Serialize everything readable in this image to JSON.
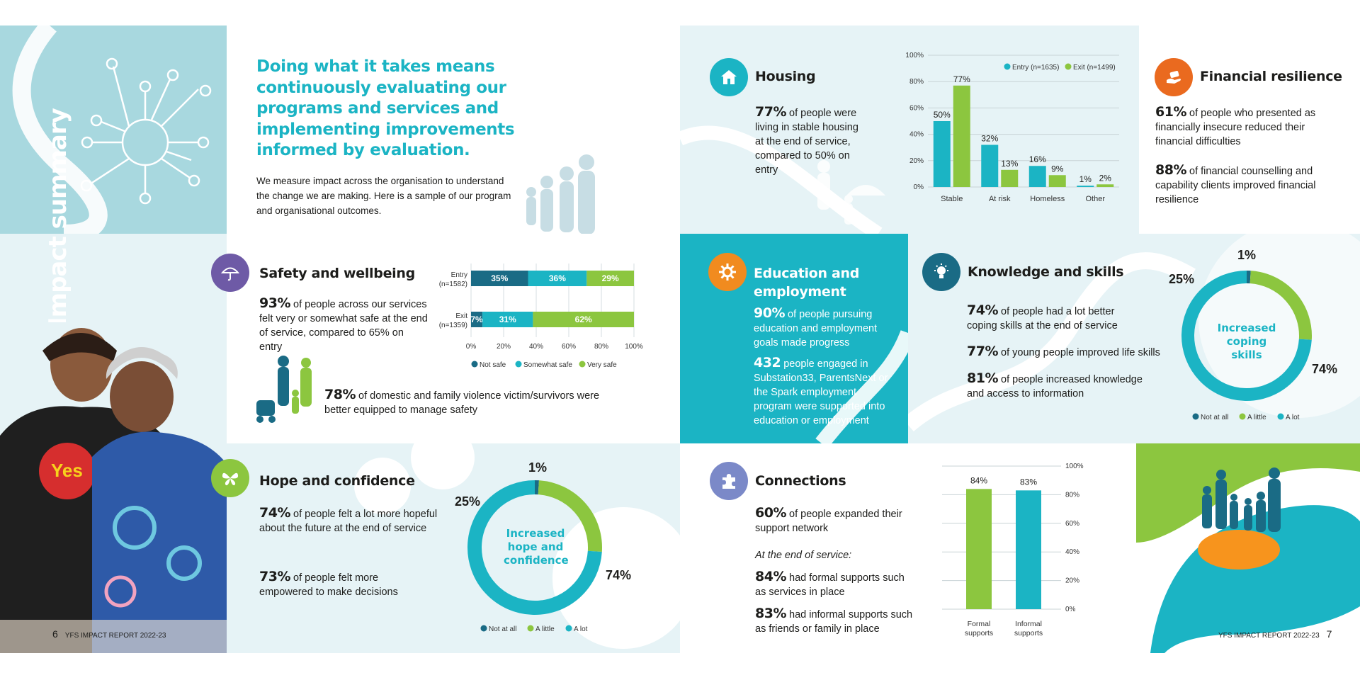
{
  "colors": {
    "teal": "#1bb4c4",
    "dark_teal": "#1a6b85",
    "green": "#8cc63f",
    "light_blue": "#e6f3f6",
    "purple": "#6e5aa6",
    "orange": "#f18b1f",
    "hero_blue": "#a8d8df"
  },
  "sidebar": {
    "vertical_title": "Impact summary"
  },
  "intro": {
    "headline": "Doing what it takes means continuously evaluating our programs and services and implementing improvements informed by evaluation.",
    "body": "We measure impact across the organisation to understand the change we are making. Here is a sample of our program and organisational outcomes."
  },
  "housing": {
    "title": "Housing",
    "icon": "house-icon",
    "stat_value": "77%",
    "stat_text": "of people were living in stable housing at the end of service, compared to 50% on entry"
  },
  "financial": {
    "title": "Financial resilience",
    "icon": "hand-money-icon",
    "stat1_value": "61%",
    "stat1_text": "of people who presented as financially insecure reduced their financial difficulties",
    "stat2_value": "88%",
    "stat2_text": "of financial counselling and capability clients improved financial resilience"
  },
  "safety": {
    "title": "Safety and wellbeing",
    "icon": "umbrella-icon",
    "stat1_value": "93%",
    "stat1_text": "of people across our services felt very or somewhat safe at the end of service, compared to 65% on entry",
    "stat2_value": "78%",
    "stat2_text": "of domestic and family violence victim/survivors were better equipped to manage safety"
  },
  "education": {
    "title": "Education and employment",
    "icon": "gear-icon",
    "stat1_value": "90%",
    "stat1_text": "of people pursuing education and employment goals made progress",
    "stat2_value": "432",
    "stat2_text": "people engaged in Substation33, ParentsNext or the Spark employment program were supported into education or employment"
  },
  "knowledge": {
    "title": "Knowledge and skills",
    "icon": "lightbulb-icon",
    "stat1_value": "74%",
    "stat1_text": "of people had a lot better coping skills at the end of service",
    "stat2_value": "77%",
    "stat2_text": "of young people improved life skills",
    "stat3_value": "81%",
    "stat3_text": "of people increased knowledge and access to information"
  },
  "hope": {
    "title": "Hope and confidence",
    "icon": "butterfly-icon",
    "stat1_value": "74%",
    "stat1_text": "of people felt a lot more hopeful about the future at the end of service",
    "stat2_value": "73%",
    "stat2_text": "of people felt more empowered to make decisions"
  },
  "connections": {
    "title": "Connections",
    "icon": "puzzle-icon",
    "stat1_value": "60%",
    "stat1_text": "of people expanded their support network",
    "end_label": "At the end of service:",
    "stat2_value": "84%",
    "stat2_text": "had formal supports such as services in place",
    "stat3_value": "83%",
    "stat3_text": "had informal supports such as friends or family in place"
  },
  "footer": {
    "left_page": "6",
    "left_label": "YFS IMPACT REPORT 2022-23",
    "right_label": "YFS IMPACT REPORT 2022-23",
    "right_page": "7"
  },
  "chart_data": [
    {
      "id": "housing",
      "type": "bar",
      "categories": [
        "Stable",
        "At risk",
        "Homeless",
        "Other"
      ],
      "series": [
        {
          "name": "Entry (n=1635)",
          "values": [
            50,
            32,
            16,
            1
          ],
          "labels": [
            "50%",
            "32%",
            "16%",
            "1%"
          ]
        },
        {
          "name": "Exit (n=1499)",
          "values": [
            77,
            13,
            9,
            2
          ],
          "labels": [
            "77%",
            "13%",
            "9%",
            "2%"
          ]
        }
      ],
      "ylim": [
        0,
        100
      ],
      "yticks": [
        "0%",
        "20%",
        "40%",
        "60%",
        "80%",
        "100%"
      ],
      "legend": "top-right"
    },
    {
      "id": "safety",
      "type": "bar",
      "orientation": "horizontal-stacked",
      "categories": [
        "Entry (n=1582)",
        "Exit (n=1359)"
      ],
      "series": [
        {
          "name": "Not safe",
          "values": [
            35,
            7
          ],
          "labels": [
            "35%",
            "7%"
          ]
        },
        {
          "name": "Somewhat safe",
          "values": [
            36,
            31
          ],
          "labels": [
            "36%",
            "31%"
          ]
        },
        {
          "name": "Very safe",
          "values": [
            29,
            62
          ],
          "labels": [
            "29%",
            "62%"
          ]
        }
      ],
      "xticks": [
        "0%",
        "20%",
        "40%",
        "60%",
        "80%",
        "100%"
      ],
      "legend": "bottom"
    },
    {
      "id": "knowledge",
      "type": "pie",
      "donut": true,
      "center_label": "Increased coping skills",
      "slices": [
        {
          "name": "Not at all",
          "value": 1,
          "label": "1%"
        },
        {
          "name": "A little",
          "value": 25,
          "label": "25%"
        },
        {
          "name": "A lot",
          "value": 74,
          "label": "74%"
        }
      ],
      "legend": "bottom"
    },
    {
      "id": "hope",
      "type": "pie",
      "donut": true,
      "center_label": "Increased hope and confidence",
      "slices": [
        {
          "name": "Not at all",
          "value": 1,
          "label": "1%"
        },
        {
          "name": "A little",
          "value": 25,
          "label": "25%"
        },
        {
          "name": "A lot",
          "value": 74,
          "label": "74%"
        }
      ],
      "legend": "bottom"
    },
    {
      "id": "connections",
      "type": "bar",
      "categories": [
        "Formal supports",
        "Informal supports"
      ],
      "values": [
        84,
        83
      ],
      "labels": [
        "84%",
        "83%"
      ],
      "ylim": [
        0,
        100
      ],
      "yticks": [
        "0%",
        "20%",
        "40%",
        "60%",
        "80%",
        "100%"
      ]
    }
  ]
}
